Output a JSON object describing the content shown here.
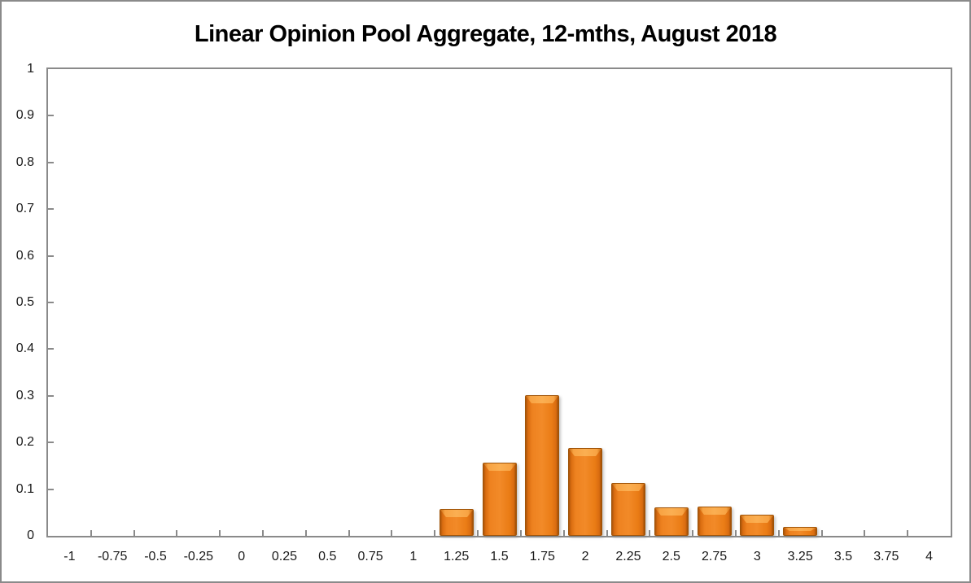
{
  "chart_data": {
    "type": "bar",
    "title": "Linear Opinion Pool Aggregate, 12-mths, August 2018",
    "categories": [
      "-1",
      "-0.75",
      "-0.5",
      "-0.25",
      "0",
      "0.25",
      "0.5",
      "0.75",
      "1",
      "1.25",
      "1.5",
      "1.75",
      "2",
      "2.25",
      "2.5",
      "2.75",
      "3",
      "3.25",
      "3.5",
      "3.75",
      "4"
    ],
    "values": [
      0,
      0,
      0,
      0,
      0,
      0,
      0,
      0,
      0,
      0.057,
      0.156,
      0.302,
      0.188,
      0.113,
      0.061,
      0.063,
      0.045,
      0.019,
      0,
      0,
      0
    ],
    "xlabel": "",
    "ylabel": "",
    "ylim": [
      0,
      1
    ],
    "ytick_labels": [
      "1",
      "0.9",
      "0.8",
      "0.7",
      "0.6",
      "0.5",
      "0.4",
      "0.3",
      "0.2",
      "0.1",
      "0"
    ],
    "grid": false,
    "legend": "none",
    "colors": {
      "bar_fill": "#ED7D31",
      "bar_edge": "#A05408",
      "bar_bevel_highlight": "#FBAF52",
      "axis_line": "#8A8A8A",
      "tick_text": "#1A1A1A",
      "title_text": "#000000",
      "background": "#FFFFFF"
    }
  }
}
